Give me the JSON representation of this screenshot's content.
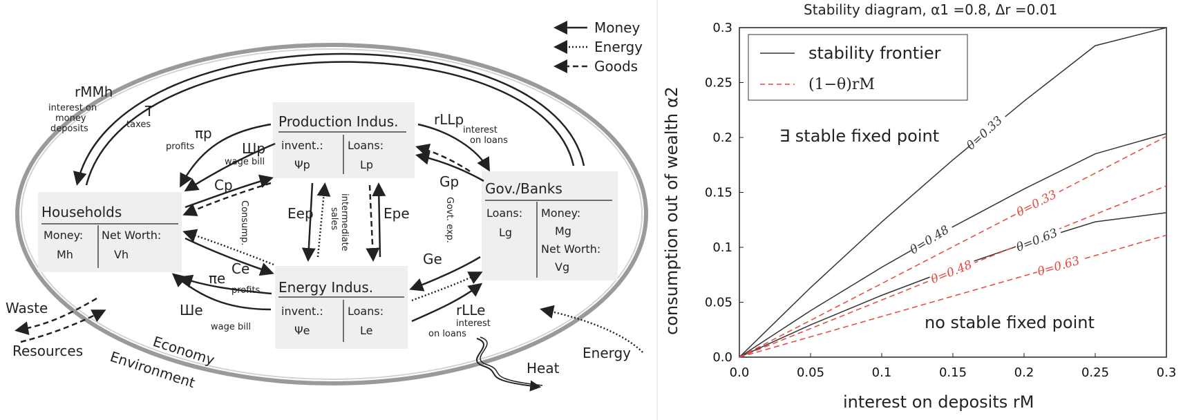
{
  "legend_left": {
    "money": "Money",
    "energy": "Energy",
    "goods": "Goods"
  },
  "boxes": {
    "production": {
      "title": "Production Indus.",
      "c1h": "invent.:",
      "c1v": "Ψp",
      "c2h": "Loans:",
      "c2v": "Lp"
    },
    "households": {
      "title": "Households",
      "c1h": "Money:",
      "c1v": "Mh",
      "c2h": "Net Worth:",
      "c2v": "Vh"
    },
    "gov": {
      "title": "Gov./Banks",
      "c1h": "Loans:",
      "c1v": "Lg",
      "c2h": "Money:",
      "c2v": "Mg",
      "c3h": "Net Worth:",
      "c3v": "Vg"
    },
    "energy": {
      "title": "Energy Indus.",
      "c1h": "invent.:",
      "c1v": "Ψe",
      "c2h": "Loans:",
      "c2v": "Le"
    }
  },
  "flows": {
    "rMMh": "rMMh",
    "interest_money_1": "interest on",
    "interest_money_2": "money",
    "interest_money_3": "deposits",
    "T": "T",
    "taxes": "taxes",
    "pi_p": "πp",
    "profits_p": "profits",
    "sha_p": "Шp",
    "wagebill_p": "wage bill",
    "Cp": "Cp",
    "consump": "Consump.",
    "rLLp": "rLLp",
    "interest_loans_p1": "interest",
    "interest_loans_p2": "on loans",
    "Gp": "Gp",
    "govt_exp": "Govt. exp.",
    "Eep": "Eep",
    "Epe": "Epe",
    "intermediate": "intermediate",
    "sales": "sales",
    "Ce": "Ce",
    "pi_e": "πe",
    "profits_e": "profits",
    "sha_e": "Шe",
    "wagebill_e": "wage bill",
    "Ge": "Ge",
    "rLLe": "rLLe",
    "interest_loans_e1": "interest",
    "interest_loans_e2": "on loans"
  },
  "environment": {
    "waste": "Waste",
    "resources": "Resources",
    "economy": "Economy",
    "environment": "Environment",
    "heat": "Heat",
    "energy": "Energy"
  },
  "chart_data": {
    "type": "line",
    "title": "Stability diagram, α1 =0.8, Δr =0.01",
    "xlabel": "interest on deposits rM",
    "ylabel": "consumption out of wealth α2",
    "xlim": [
      0,
      0.3
    ],
    "ylim": [
      0,
      0.3
    ],
    "xticks": [
      "0.0",
      "0.05",
      "0.1",
      "0.15",
      "0.2",
      "0.25",
      "0.3"
    ],
    "yticks": [
      "0.0",
      "0.05",
      "0.1",
      "0.15",
      "0.2",
      "0.25",
      "0.3"
    ],
    "legend": [
      {
        "name": "stability frontier",
        "style": "solid",
        "color": "#333333"
      },
      {
        "name": "(1−θ)rM",
        "style": "dashed",
        "color": "#e8453c"
      }
    ],
    "legend_position": "top-left",
    "annotations": {
      "stable": "∃ stable fixed point",
      "unstable": "no stable fixed point"
    },
    "series": [
      {
        "kind": "frontier",
        "label": "θ=0.33",
        "color": "#333333",
        "x": [
          0,
          0.05,
          0.1,
          0.15,
          0.2,
          0.25,
          0.3
        ],
        "y": [
          0,
          0.0633,
          0.1231,
          0.1796,
          0.2331,
          0.2836,
          0.3
        ]
      },
      {
        "kind": "frontier",
        "label": "θ=0.48",
        "color": "#333333",
        "x": [
          0,
          0.05,
          0.1,
          0.15,
          0.2,
          0.25,
          0.3
        ],
        "y": [
          0,
          0.0423,
          0.0818,
          0.1187,
          0.1531,
          0.1851,
          0.2035
        ]
      },
      {
        "kind": "frontier",
        "label": "θ=0.63",
        "color": "#333333",
        "x": [
          0,
          0.05,
          0.1,
          0.15,
          0.2,
          0.25,
          0.3
        ],
        "y": [
          0,
          0.0294,
          0.0563,
          0.0808,
          0.1031,
          0.1232,
          0.1315
        ]
      },
      {
        "kind": "threshold",
        "label": "θ=0.33",
        "color": "#e8453c",
        "x": [
          0,
          0.3
        ],
        "y": [
          0,
          0.201
        ]
      },
      {
        "kind": "threshold",
        "label": "θ=0.48",
        "color": "#e8453c",
        "x": [
          0,
          0.3
        ],
        "y": [
          0,
          0.156
        ]
      },
      {
        "kind": "threshold",
        "label": "θ=0.63",
        "color": "#e8453c",
        "x": [
          0,
          0.3
        ],
        "y": [
          0,
          0.111
        ]
      }
    ]
  }
}
